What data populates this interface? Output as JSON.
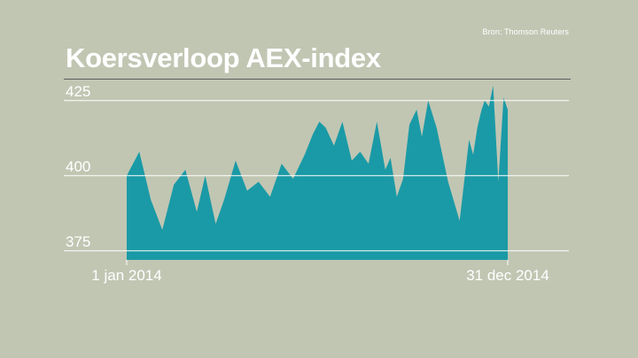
{
  "source": "Bron: Thomson Reuters",
  "colors": {
    "background": "#c1c6b3",
    "area": "#1a9aa6",
    "text": "#ffffff",
    "grid": "#ffffff"
  },
  "chart_data": {
    "type": "area",
    "title": "Koersverloop AEX-index",
    "xlabel": "",
    "ylabel": "",
    "x_tick_labels": [
      "1 jan 2014",
      "31 dec 2014"
    ],
    "y_ticks": [
      375,
      400,
      425
    ],
    "ylim": [
      372,
      432
    ],
    "grid": "horizontal",
    "legend": "none",
    "series": [
      {
        "x": [
          "2014-01-01",
          "2014-01-13",
          "2014-01-24",
          "2014-02-04",
          "2014-02-15",
          "2014-02-26",
          "2014-03-09",
          "2014-03-17",
          "2014-03-27",
          "2014-04-04",
          "2014-04-15",
          "2014-04-26",
          "2014-05-07",
          "2014-05-18",
          "2014-05-29",
          "2014-06-09",
          "2014-06-20",
          "2014-06-28",
          "2014-07-04",
          "2014-07-10",
          "2014-07-18",
          "2014-07-26",
          "2014-08-04",
          "2014-08-12",
          "2014-08-20",
          "2014-08-28",
          "2014-09-05",
          "2014-09-10",
          "2014-09-16",
          "2014-09-22",
          "2014-09-28",
          "2014-10-05",
          "2014-10-10",
          "2014-10-16",
          "2014-10-24",
          "2014-11-04",
          "2014-11-15",
          "2014-11-20",
          "2014-11-24",
          "2014-11-28",
          "2014-12-02",
          "2014-12-06",
          "2014-12-09",
          "2014-12-13",
          "2014-12-17",
          "2014-12-22",
          "2014-12-27",
          "2014-12-31"
        ],
        "values": [
          400,
          408,
          392,
          382,
          397,
          402,
          388,
          400,
          384,
          392,
          405,
          395,
          398,
          393,
          404,
          399,
          407,
          414,
          418,
          416,
          410,
          418,
          405,
          408,
          404,
          418,
          402,
          406,
          393,
          399,
          417,
          422,
          413,
          425,
          416,
          398,
          385,
          400,
          412,
          407,
          416,
          422,
          425,
          423,
          430,
          398,
          426,
          422
        ]
      }
    ]
  }
}
